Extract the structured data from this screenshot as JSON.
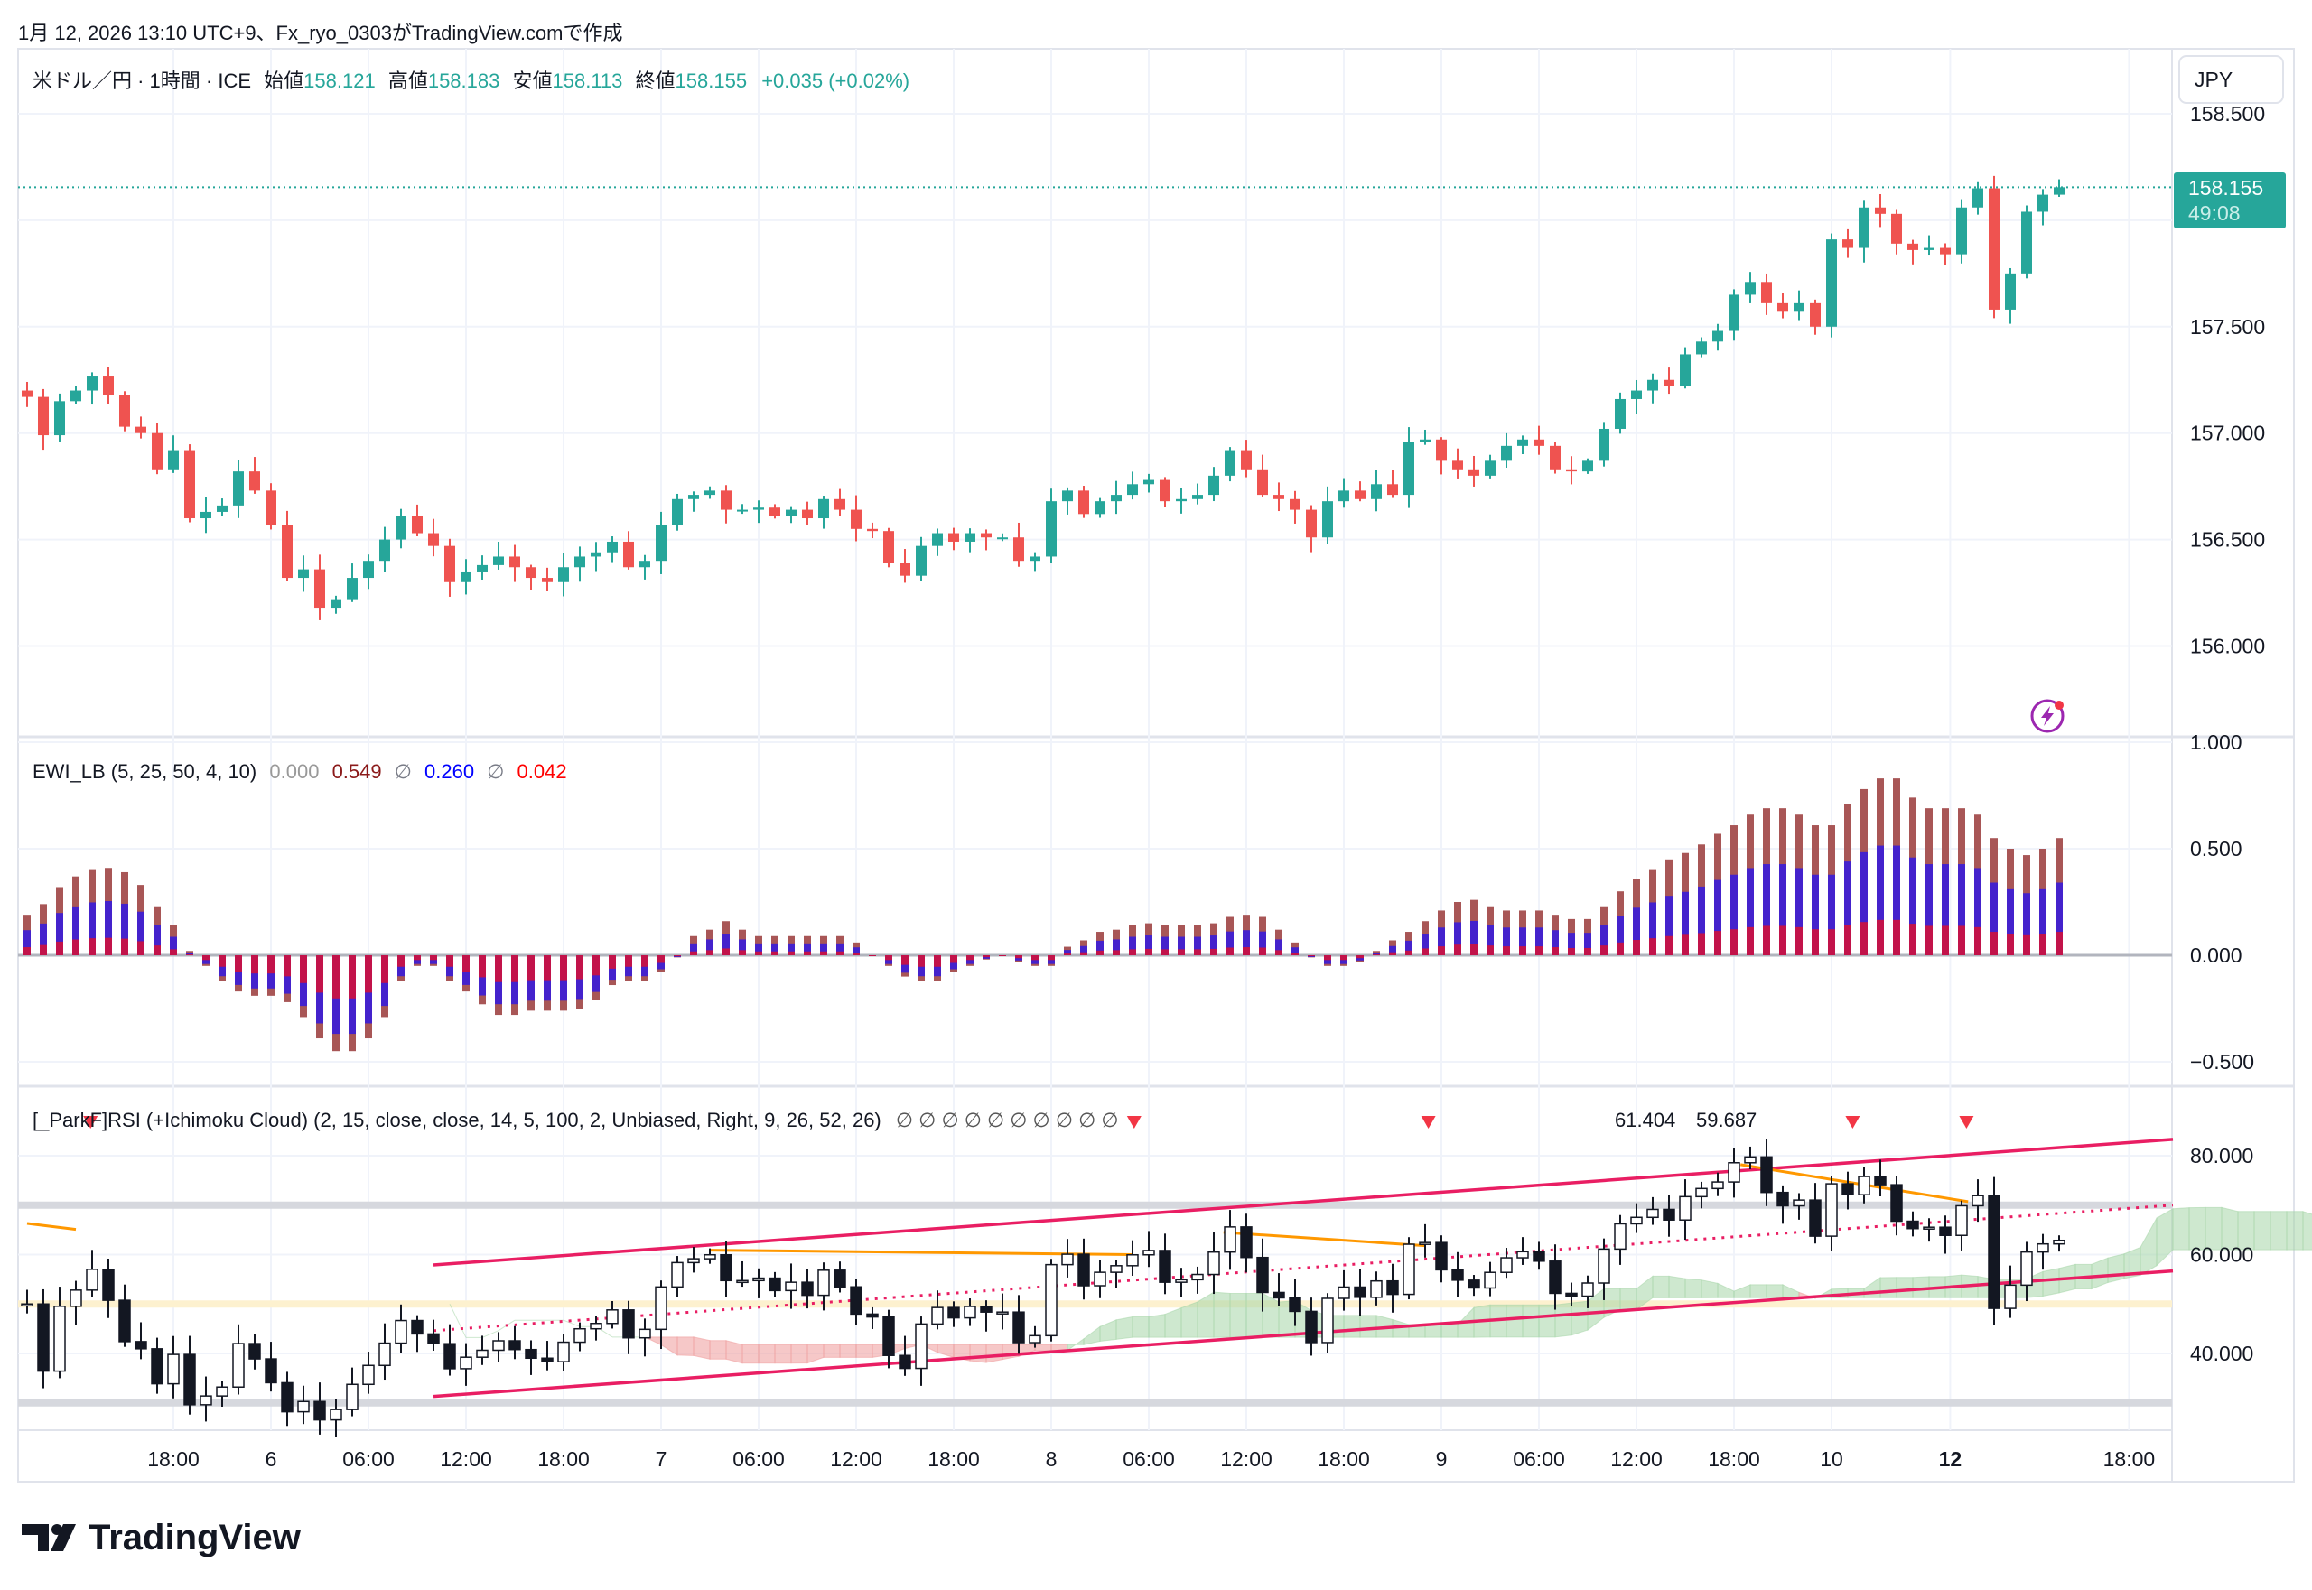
{
  "header": {
    "created": "1月 12, 2026 13:10 UTC+9、Fx_ryo_0303がTradingView.comで作成"
  },
  "main": {
    "symbol": "米ドル／円 · 1時間 · ICE",
    "open_label": "始値",
    "open": "158.121",
    "high_label": "高値",
    "high": "158.183",
    "low_label": "安値",
    "low": "158.113",
    "close_label": "終値",
    "close": "158.155",
    "change": "+0.035 (+0.02%)",
    "currency_button": "JPY",
    "last_price": "158.155",
    "countdown": "49:08",
    "price_ticks": [
      "158.500",
      "157.500",
      "157.000",
      "156.500",
      "156.000"
    ]
  },
  "ewi": {
    "title": "EWI_LB (5, 25, 50, 4, 10)",
    "v0": "0.000",
    "v1": "0.549",
    "sep1": "∅",
    "v2": "0.260",
    "sep2": "∅",
    "v3": "0.042",
    "ticks": [
      "1.000",
      "0.500",
      "0.000",
      "−0.500"
    ]
  },
  "rsi": {
    "title": "[_ParkF]RSI (+Ichimoku Cloud) (2, 15, close, close, 14, 5, 100, 2, Unbiased, Right, 9, 26, 52, 26)",
    "empty_values": "∅ ∅ ∅ ∅ ∅ ∅ ∅ ∅ ∅ ∅",
    "value_green": "61.404",
    "value_red": "59.687",
    "ticks": [
      "80.000",
      "60.000",
      "40.000"
    ]
  },
  "time_axis": [
    "18:00",
    "6",
    "06:00",
    "12:00",
    "18:00",
    "7",
    "06:00",
    "12:00",
    "18:00",
    "8",
    "06:00",
    "12:00",
    "18:00",
    "9",
    "06:00",
    "12:00",
    "18:00",
    "10",
    "12",
    "18:00"
  ],
  "logo": "TradingView",
  "colors": {
    "up": "#26a69a",
    "down": "#ef5350",
    "channel": "#e91e63",
    "trend": "#ff9800",
    "ewi_total": "#a85656",
    "ewi_blue": "#4422cc",
    "ewi_red": "#c2134a",
    "alert": "#9c27b0"
  },
  "chart_data": [
    {
      "type": "candlestick",
      "name_shown": "米ドル／円",
      "price_ticks": [
        158.5,
        157.5,
        157.0,
        156.5,
        156.0
      ],
      "ylim": [
        155.75,
        158.62
      ],
      "last_price": 158.155,
      "closes": [
        157.17,
        156.99,
        157.15,
        157.2,
        157.27,
        157.18,
        157.03,
        157.0,
        156.83,
        156.92,
        156.6,
        156.63,
        156.66,
        156.82,
        156.73,
        156.57,
        156.32,
        156.36,
        156.18,
        156.22,
        156.32,
        156.4,
        156.5,
        156.61,
        156.53,
        156.47,
        156.3,
        156.35,
        156.38,
        156.42,
        156.37,
        156.32,
        156.3,
        156.37,
        156.42,
        156.44,
        156.49,
        156.37,
        156.4,
        156.57,
        156.69,
        156.71,
        156.73,
        156.64,
        156.64,
        156.65,
        156.61,
        156.64,
        156.6,
        156.69,
        156.64,
        156.55,
        156.54,
        156.39,
        156.33,
        156.47,
        156.53,
        156.49,
        156.53,
        156.51,
        156.51,
        156.4,
        156.42,
        156.68,
        156.73,
        156.62,
        156.68,
        156.71,
        156.76,
        156.78,
        156.68,
        156.69,
        156.71,
        156.8,
        156.92,
        156.83,
        156.71,
        156.69,
        156.64,
        156.51,
        156.68,
        156.73,
        156.69,
        156.76,
        156.71,
        156.96,
        156.97,
        156.87,
        156.83,
        156.8,
        156.87,
        156.94,
        156.97,
        156.94,
        156.83,
        156.82,
        156.87,
        157.02,
        157.16,
        157.2,
        157.25,
        157.22,
        157.37,
        157.43,
        157.48,
        157.65,
        157.71,
        157.61,
        157.57,
        157.61,
        157.5,
        157.91,
        157.87,
        158.06,
        158.03,
        157.89,
        157.86,
        157.87,
        157.84,
        158.06,
        158.15,
        157.58,
        157.75,
        158.04,
        158.12,
        158.155
      ]
    },
    {
      "type": "bar",
      "name_shown": "EWI_LB",
      "ticks": [
        1.0,
        0.5,
        0.0,
        -0.5
      ],
      "ylim": [
        -0.62,
        1.02
      ],
      "total": [
        0.19,
        0.24,
        0.32,
        0.37,
        0.4,
        0.41,
        0.39,
        0.33,
        0.23,
        0.14,
        0.02,
        -0.05,
        -0.12,
        -0.17,
        -0.19,
        -0.19,
        -0.22,
        -0.29,
        -0.39,
        -0.45,
        -0.45,
        -0.39,
        -0.29,
        -0.12,
        -0.05,
        -0.05,
        -0.12,
        -0.17,
        -0.23,
        -0.28,
        -0.28,
        -0.26,
        -0.26,
        -0.26,
        -0.25,
        -0.21,
        -0.14,
        -0.12,
        -0.12,
        -0.08,
        -0.01,
        0.09,
        0.12,
        0.16,
        0.12,
        0.09,
        0.09,
        0.09,
        0.09,
        0.09,
        0.09,
        0.06,
        0.0,
        -0.05,
        -0.1,
        -0.12,
        -0.12,
        -0.08,
        -0.05,
        -0.02,
        0.0,
        -0.03,
        -0.05,
        -0.05,
        0.04,
        0.07,
        0.11,
        0.12,
        0.14,
        0.15,
        0.14,
        0.14,
        0.14,
        0.15,
        0.18,
        0.19,
        0.18,
        0.12,
        0.06,
        -0.01,
        -0.05,
        -0.05,
        -0.03,
        0.02,
        0.07,
        0.11,
        0.16,
        0.21,
        0.25,
        0.26,
        0.23,
        0.21,
        0.21,
        0.21,
        0.19,
        0.17,
        0.17,
        0.23,
        0.3,
        0.36,
        0.4,
        0.45,
        0.48,
        0.52,
        0.57,
        0.61,
        0.66,
        0.69,
        0.69,
        0.66,
        0.61,
        0.61,
        0.71,
        0.78,
        0.83,
        0.83,
        0.74,
        0.69,
        0.69,
        0.69,
        0.66,
        0.55,
        0.5,
        0.47,
        0.5,
        0.55
      ]
    },
    {
      "type": "candlestick",
      "name_shown": "[_ParkF]RSI",
      "ticks": [
        80,
        60,
        40
      ],
      "ylim": [
        26,
        92
      ],
      "bands": [
        70,
        50,
        30
      ],
      "channel_upper": {
        "from_index": 25,
        "to_index": 132,
        "from": 57.9,
        "to": 83.3
      },
      "channel_lower": {
        "from_index": 25,
        "to_index": 132,
        "from": 31.3,
        "to": 56.7
      },
      "channel_middle": {
        "from_index": 25,
        "to_index": 132,
        "from": 44.6,
        "to": 70.0
      },
      "trend_lines": [
        {
          "from_index": 0,
          "to_index": 3,
          "from": 66.3,
          "to": 65.1
        },
        {
          "from_index": 42,
          "to_index": 68,
          "from": 60.9,
          "to": 60.0
        },
        {
          "from_index": 73.6,
          "to_index": 86,
          "from": 64.5,
          "to": 61.8
        },
        {
          "from_index": 105.4,
          "to_index": 119.4,
          "from": 78.2,
          "to": 70.7
        }
      ],
      "signal_markers": [
        3.9,
        68.1,
        86.2,
        112.3,
        119.3
      ]
    }
  ]
}
